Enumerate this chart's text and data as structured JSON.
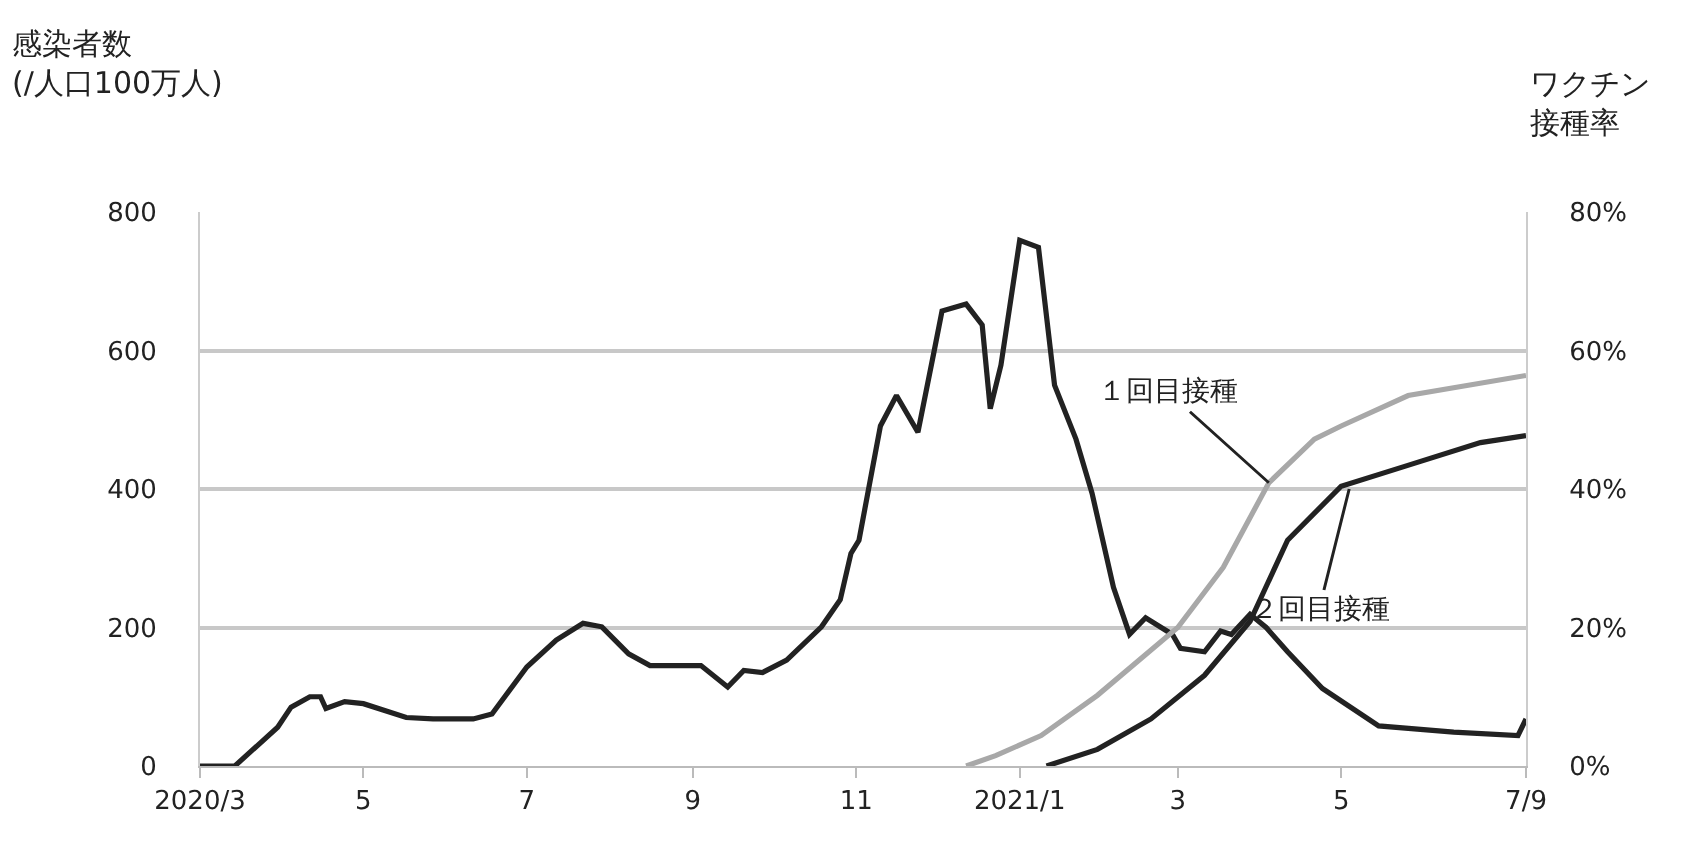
{
  "chart_data": {
    "type": "line",
    "ylabel": "感染者数\n(/人口100万人)",
    "y2label": "ワクチン接種率",
    "xlim": [
      "2020-03-01",
      "2021-07-09"
    ],
    "xticks": [
      {
        "value": "2020-03-01",
        "label": "2020/3"
      },
      {
        "value": "2020-05-01",
        "label": "5"
      },
      {
        "value": "2020-07-01",
        "label": "7"
      },
      {
        "value": "2020-09-01",
        "label": "9"
      },
      {
        "value": "2020-11-01",
        "label": "11"
      },
      {
        "value": "2021-01-01",
        "label": "2021/1"
      },
      {
        "value": "2021-03-01",
        "label": "3"
      },
      {
        "value": "2021-05-01",
        "label": "5"
      },
      {
        "value": "2021-07-09",
        "label": "7/9"
      }
    ],
    "ylim": [
      0,
      800
    ],
    "yticks": [
      0,
      200,
      400,
      600,
      800
    ],
    "y2lim": [
      0,
      80
    ],
    "y2ticks": [
      {
        "value": 0,
        "label": "0%"
      },
      {
        "value": 20,
        "label": "20%"
      },
      {
        "value": 40,
        "label": "40%"
      },
      {
        "value": 60,
        "label": "60%"
      },
      {
        "value": 80,
        "label": "80%"
      }
    ],
    "grid": "y",
    "line_style": "solid",
    "marker": "none",
    "series": [
      {
        "color": "#222222",
        "x": [
          "2020-03-01",
          "2020-03-14",
          "2020-03-30",
          "2020-04-04",
          "2020-04-11",
          "2020-04-15",
          "2020-04-17",
          "2020-04-24",
          "2020-05-01",
          "2020-05-17",
          "2020-05-27",
          "2020-06-11",
          "2020-06-18",
          "2020-07-01",
          "2020-07-12",
          "2020-07-22",
          "2020-07-29",
          "2020-08-08",
          "2020-08-16",
          "2020-09-04",
          "2020-09-14",
          "2020-09-20",
          "2020-09-27",
          "2020-10-06",
          "2020-10-19",
          "2020-10-26",
          "2020-10-30",
          "2020-11-02",
          "2020-11-10",
          "2020-11-16",
          "2020-11-24",
          "2020-11-30",
          "2020-12-03",
          "2020-12-12",
          "2020-12-18",
          "2020-12-21",
          "2020-12-25",
          "2021-01-01",
          "2021-01-08",
          "2021-01-14",
          "2021-01-22",
          "2021-01-28",
          "2021-02-05",
          "2021-02-11",
          "2021-02-17",
          "2021-02-27",
          "2021-03-02",
          "2021-03-11",
          "2021-03-17",
          "2021-03-21",
          "2021-03-28",
          "2021-04-03",
          "2021-04-11",
          "2021-04-24",
          "2021-05-15",
          "2021-06-12",
          "2021-07-06",
          "2021-07-09"
        ],
        "values": [
          0,
          0,
          56,
          85,
          100,
          100,
          83,
          93,
          90,
          70,
          68,
          68,
          75,
          143,
          182,
          206,
          201,
          162,
          145,
          145,
          114,
          138,
          135,
          153,
          201,
          240,
          307,
          326,
          491,
          535,
          482,
          598,
          657,
          667,
          637,
          516,
          579,
          759,
          749,
          550,
          472,
          394,
          258,
          190,
          214,
          190,
          170,
          165,
          195,
          190,
          219,
          200,
          165,
          112,
          58,
          49,
          44,
          68
        ]
      },
      {
        "color": "#a8a8a8",
        "axis": "y2",
        "x": [
          "2020-12-12",
          "2020-12-23",
          "2021-01-09",
          "2021-01-30",
          "2021-03-01",
          "2021-03-18",
          "2021-04-04",
          "2021-04-21",
          "2021-05-01",
          "2021-05-26",
          "2021-07-09"
        ],
        "values": [
          0,
          1.5,
          4.4,
          10.2,
          20,
          28.7,
          40.9,
          47.2,
          49.1,
          53.5,
          56.4
        ]
      },
      {
        "color": "#222222",
        "axis": "y2",
        "x": [
          "2021-01-11",
          "2021-01-30",
          "2021-02-19",
          "2021-03-11",
          "2021-03-28",
          "2021-04-11",
          "2021-05-01",
          "2021-05-25",
          "2021-06-22",
          "2021-07-09"
        ],
        "values": [
          0,
          2.4,
          6.8,
          13.1,
          20.9,
          32.6,
          40.4,
          43.3,
          46.7,
          47.7
        ]
      }
    ],
    "annotations": [
      {
        "text": "１回目接種",
        "x": "2021-04-04",
        "y": 409
      },
      {
        "text": "２回目接種",
        "x": "2021-05-04",
        "y": 400
      }
    ]
  }
}
